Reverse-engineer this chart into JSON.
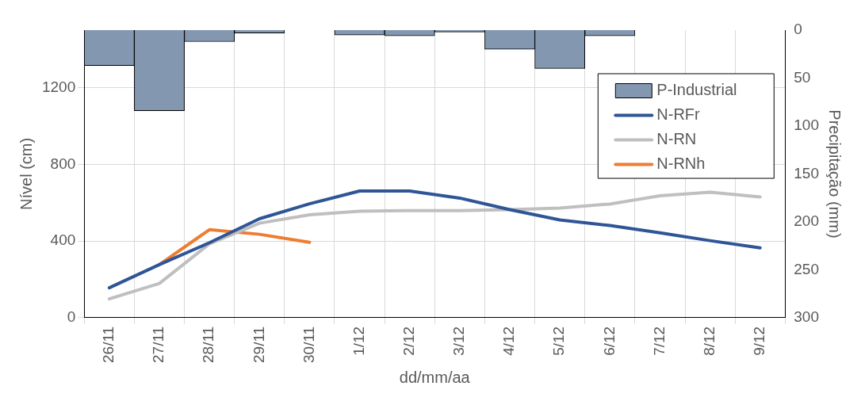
{
  "chart_data": {
    "type": "line",
    "xlabel": "dd/mm/aa",
    "ylabel": "Nível (cm)",
    "y2label": "Precipitação (mm)",
    "categories": [
      "26/11",
      "27/11",
      "28/11",
      "29/11",
      "30/11",
      "1/12",
      "2/12",
      "3/12",
      "4/12",
      "5/12",
      "6/12",
      "7/12",
      "8/12",
      "9/12"
    ],
    "series": [
      {
        "name": "P-Industrial",
        "type": "bar",
        "axis": "y2",
        "color": "#8497b0",
        "values": [
          37,
          84,
          12,
          3,
          0,
          5,
          6,
          2,
          20,
          40,
          6,
          0,
          0,
          0
        ]
      },
      {
        "name": "N-RFr",
        "color": "#2f5597",
        "values": [
          156,
          277,
          391,
          516,
          594,
          661,
          661,
          624,
          564,
          510,
          481,
          443,
          402,
          364
        ]
      },
      {
        "name": "N-RN",
        "color": "#bfbfbf",
        "values": [
          98,
          179,
          385,
          493,
          537,
          555,
          559,
          559,
          564,
          572,
          593,
          636,
          655,
          630
        ]
      },
      {
        "name": "N-RNh",
        "color": "#ed7d31",
        "values": [
          null,
          277,
          459,
          435,
          393,
          null,
          null,
          null,
          null,
          null,
          null,
          null,
          null,
          null
        ]
      }
    ],
    "ylim": [
      0,
      1500
    ],
    "yticks": [
      0,
      400,
      800,
      1200
    ],
    "y2lim": [
      300,
      0
    ],
    "y2ticks": [
      0,
      50,
      100,
      150,
      200,
      250,
      300
    ],
    "grid": true,
    "legend": "top right",
    "marker": "none",
    "line_style": "solid"
  }
}
